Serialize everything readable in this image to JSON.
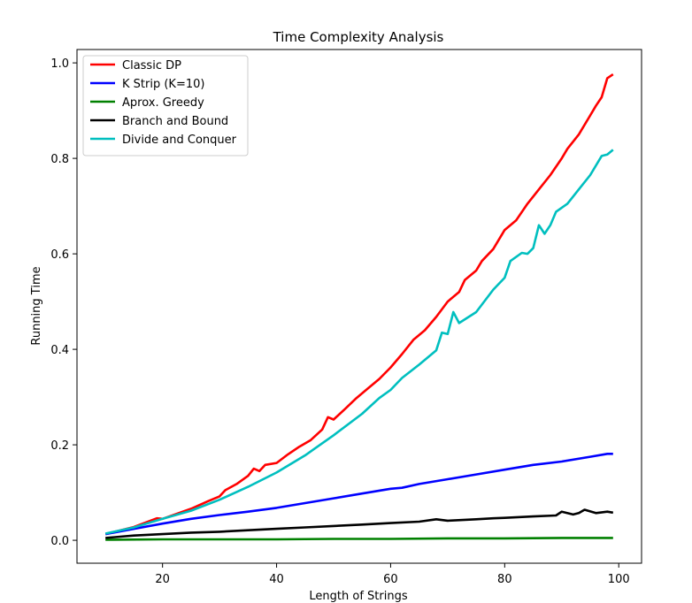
{
  "chart_data": {
    "type": "line",
    "title": "Time Complexity Analysis",
    "xlabel": "Length of Strings",
    "ylabel": "Running Time",
    "xlim": [
      5,
      104
    ],
    "ylim": [
      -0.048,
      1.028
    ],
    "xticks": [
      20,
      40,
      60,
      80,
      100
    ],
    "yticks": [
      0.0,
      0.2,
      0.4,
      0.6,
      0.8,
      1.0
    ],
    "grid": false,
    "legend_position": "top-left",
    "series": [
      {
        "name": "Classic DP",
        "color": "#ff0000",
        "points": [
          [
            10,
            0.013
          ],
          [
            15,
            0.028
          ],
          [
            19,
            0.046
          ],
          [
            20,
            0.045
          ],
          [
            25,
            0.066
          ],
          [
            28,
            0.082
          ],
          [
            30,
            0.092
          ],
          [
            31,
            0.105
          ],
          [
            33,
            0.118
          ],
          [
            35,
            0.135
          ],
          [
            36,
            0.15
          ],
          [
            37,
            0.145
          ],
          [
            38,
            0.158
          ],
          [
            40,
            0.162
          ],
          [
            42,
            0.18
          ],
          [
            44,
            0.196
          ],
          [
            46,
            0.21
          ],
          [
            48,
            0.232
          ],
          [
            49,
            0.258
          ],
          [
            50,
            0.253
          ],
          [
            52,
            0.275
          ],
          [
            54,
            0.298
          ],
          [
            56,
            0.318
          ],
          [
            58,
            0.338
          ],
          [
            60,
            0.362
          ],
          [
            62,
            0.39
          ],
          [
            64,
            0.42
          ],
          [
            66,
            0.44
          ],
          [
            68,
            0.468
          ],
          [
            70,
            0.5
          ],
          [
            72,
            0.52
          ],
          [
            73,
            0.545
          ],
          [
            75,
            0.565
          ],
          [
            76,
            0.585
          ],
          [
            78,
            0.61
          ],
          [
            80,
            0.65
          ],
          [
            82,
            0.67
          ],
          [
            84,
            0.705
          ],
          [
            86,
            0.735
          ],
          [
            88,
            0.765
          ],
          [
            90,
            0.8
          ],
          [
            91,
            0.82
          ],
          [
            93,
            0.85
          ],
          [
            95,
            0.89
          ],
          [
            96,
            0.91
          ],
          [
            97,
            0.928
          ],
          [
            98,
            0.968
          ],
          [
            99,
            0.976
          ]
        ]
      },
      {
        "name": "K Strip (K=10)",
        "color": "#0000ff",
        "points": [
          [
            10,
            0.013
          ],
          [
            15,
            0.024
          ],
          [
            20,
            0.035
          ],
          [
            25,
            0.045
          ],
          [
            30,
            0.053
          ],
          [
            35,
            0.06
          ],
          [
            40,
            0.068
          ],
          [
            45,
            0.078
          ],
          [
            50,
            0.088
          ],
          [
            55,
            0.098
          ],
          [
            60,
            0.108
          ],
          [
            62,
            0.11
          ],
          [
            65,
            0.118
          ],
          [
            70,
            0.128
          ],
          [
            75,
            0.138
          ],
          [
            80,
            0.148
          ],
          [
            85,
            0.158
          ],
          [
            90,
            0.165
          ],
          [
            95,
            0.175
          ],
          [
            98,
            0.181
          ],
          [
            99,
            0.181
          ]
        ]
      },
      {
        "name": "Aprox. Greedy",
        "color": "#008000",
        "points": [
          [
            10,
            0.001
          ],
          [
            20,
            0.002
          ],
          [
            30,
            0.002
          ],
          [
            40,
            0.002
          ],
          [
            50,
            0.003
          ],
          [
            60,
            0.003
          ],
          [
            70,
            0.004
          ],
          [
            80,
            0.004
          ],
          [
            90,
            0.005
          ],
          [
            99,
            0.005
          ]
        ]
      },
      {
        "name": "Branch and Bound",
        "color": "#000000",
        "points": [
          [
            10,
            0.005
          ],
          [
            15,
            0.01
          ],
          [
            20,
            0.013
          ],
          [
            25,
            0.016
          ],
          [
            30,
            0.018
          ],
          [
            35,
            0.021
          ],
          [
            40,
            0.024
          ],
          [
            45,
            0.027
          ],
          [
            50,
            0.03
          ],
          [
            55,
            0.033
          ],
          [
            60,
            0.036
          ],
          [
            65,
            0.039
          ],
          [
            68,
            0.044
          ],
          [
            70,
            0.041
          ],
          [
            75,
            0.044
          ],
          [
            78,
            0.046
          ],
          [
            80,
            0.047
          ],
          [
            85,
            0.05
          ],
          [
            89,
            0.052
          ],
          [
            90,
            0.06
          ],
          [
            92,
            0.054
          ],
          [
            93,
            0.057
          ],
          [
            94,
            0.064
          ],
          [
            96,
            0.057
          ],
          [
            98,
            0.06
          ],
          [
            99,
            0.058
          ]
        ]
      },
      {
        "name": "Divide and Conquer",
        "color": "#00bfbf",
        "points": [
          [
            10,
            0.014
          ],
          [
            15,
            0.027
          ],
          [
            20,
            0.045
          ],
          [
            25,
            0.062
          ],
          [
            30,
            0.085
          ],
          [
            35,
            0.112
          ],
          [
            40,
            0.142
          ],
          [
            45,
            0.178
          ],
          [
            50,
            0.22
          ],
          [
            55,
            0.265
          ],
          [
            58,
            0.298
          ],
          [
            60,
            0.315
          ],
          [
            62,
            0.34
          ],
          [
            65,
            0.368
          ],
          [
            68,
            0.398
          ],
          [
            69,
            0.435
          ],
          [
            70,
            0.432
          ],
          [
            71,
            0.478
          ],
          [
            72,
            0.455
          ],
          [
            75,
            0.478
          ],
          [
            78,
            0.525
          ],
          [
            80,
            0.55
          ],
          [
            81,
            0.585
          ],
          [
            83,
            0.602
          ],
          [
            84,
            0.6
          ],
          [
            85,
            0.612
          ],
          [
            86,
            0.66
          ],
          [
            87,
            0.642
          ],
          [
            88,
            0.66
          ],
          [
            89,
            0.688
          ],
          [
            91,
            0.705
          ],
          [
            93,
            0.735
          ],
          [
            95,
            0.765
          ],
          [
            97,
            0.805
          ],
          [
            98,
            0.808
          ],
          [
            99,
            0.818
          ]
        ]
      }
    ]
  }
}
